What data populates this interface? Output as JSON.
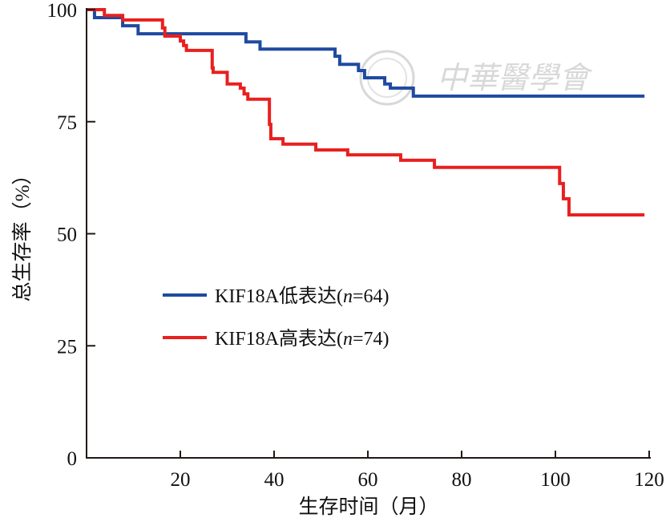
{
  "chart_data": {
    "type": "line",
    "subtype": "kaplan-meier-step",
    "title": "",
    "xlabel": "生存时间（月）",
    "ylabel": "总生存率（%）",
    "xlim": [
      0,
      120
    ],
    "ylim": [
      0,
      100
    ],
    "xticks": [
      "20",
      "40",
      "60",
      "80",
      "100",
      "120"
    ],
    "xtick_values": [
      20,
      40,
      60,
      80,
      100,
      120
    ],
    "yticks": [
      "0",
      "25",
      "50",
      "75",
      "100"
    ],
    "ytick_values": [
      0,
      25,
      50,
      75,
      100
    ],
    "grid": false,
    "legend_position": "center-left",
    "series": [
      {
        "name": "KIF18A低表达",
        "legend_prefix": "KIF18A低表达(",
        "legend_n": "n",
        "legend_suffix": "=64)",
        "color": "#1f4aa0",
        "steps": [
          [
            0,
            100
          ],
          [
            1.7,
            98.2
          ],
          [
            7.7,
            96.4
          ],
          [
            11,
            94.6
          ],
          [
            34,
            92.8
          ],
          [
            37,
            91.2
          ],
          [
            53,
            89.6
          ],
          [
            54,
            87.8
          ],
          [
            58,
            86.4
          ],
          [
            59.3,
            84.8
          ],
          [
            63.6,
            83.4
          ],
          [
            64.8,
            82.5
          ],
          [
            69.7,
            80.7
          ],
          [
            119,
            80.7
          ]
        ]
      },
      {
        "name": "KIF18A高表达",
        "legend_prefix": "KIF18A高表达(",
        "legend_n": "n",
        "legend_suffix": "=74)",
        "color": "#e8201f",
        "steps": [
          [
            0,
            100
          ],
          [
            3.8,
            98.7
          ],
          [
            7.7,
            97.7
          ],
          [
            16.2,
            95.9
          ],
          [
            16.7,
            94.1
          ],
          [
            20,
            93
          ],
          [
            20.7,
            92
          ],
          [
            21.3,
            90.9
          ],
          [
            26.8,
            87
          ],
          [
            27,
            86
          ],
          [
            30,
            83.4
          ],
          [
            32.8,
            82.5
          ],
          [
            33.6,
            81.2
          ],
          [
            34.4,
            80
          ],
          [
            39,
            74.4
          ],
          [
            39.3,
            71.2
          ],
          [
            41.9,
            70
          ],
          [
            48.9,
            68.7
          ],
          [
            55.7,
            67.6
          ],
          [
            67,
            66.4
          ],
          [
            74.2,
            64.8
          ],
          [
            100.9,
            61.2
          ],
          [
            101.7,
            57.8
          ],
          [
            102.9,
            54.2
          ],
          [
            119,
            54.2
          ]
        ]
      }
    ]
  },
  "watermark": "中華醫學會"
}
